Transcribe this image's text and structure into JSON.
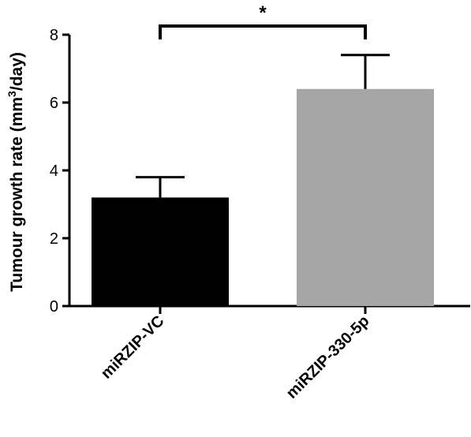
{
  "chart_data": {
    "type": "bar",
    "categories": [
      "miRZIP-VC",
      "miRZIP-330-5p"
    ],
    "values": [
      3.2,
      6.4
    ],
    "errors": [
      0.6,
      1.0
    ],
    "colors": [
      "#000000",
      "#a6a6a6"
    ],
    "ylabel_main": "Tumour growth rate (mm",
    "ylabel_sup": "3",
    "ylabel_end": "/day)",
    "ylim": [
      0,
      8
    ],
    "yticks": [
      "0",
      "2",
      "4",
      "6",
      "8"
    ],
    "significance": {
      "between": [
        0,
        1
      ],
      "label": "*"
    },
    "grid": false,
    "legend": "none"
  }
}
